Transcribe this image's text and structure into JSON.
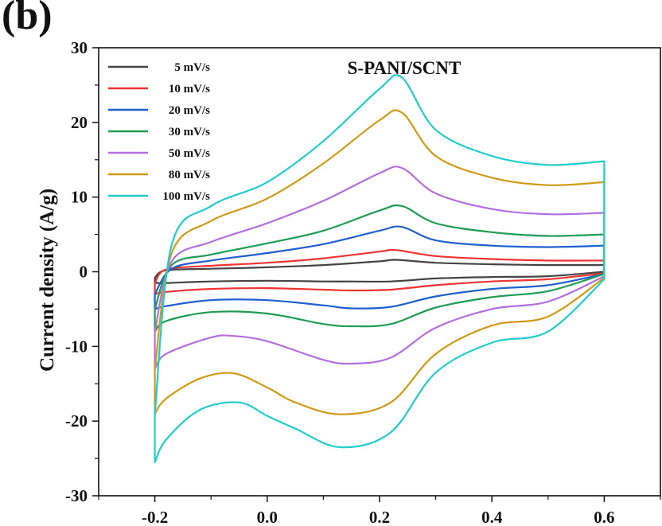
{
  "panel_label": "(b)",
  "chart_data": {
    "type": "line",
    "title": "S-PANI/SCNT",
    "xlabel": "",
    "ylabel": "Current density (A/g)",
    "xlim": [
      -0.3,
      0.7
    ],
    "ylim": [
      -30,
      30
    ],
    "xticks": [
      -0.2,
      0.0,
      0.2,
      0.4,
      0.6
    ],
    "xtick_labels": [
      "-0.2",
      "0.0",
      "0.2",
      "0.4",
      "0.6"
    ],
    "yticks": [
      -30,
      -20,
      -10,
      0,
      10,
      20,
      30
    ],
    "ytick_labels": [
      "-30",
      "-20",
      "-10",
      "0",
      "10",
      "20",
      "30"
    ],
    "grid": false,
    "legend_position": "top-left",
    "series": [
      {
        "name": "5 mV/s",
        "color": "#444444",
        "anodic": [
          [
            -0.2,
            -0.8
          ],
          [
            -0.18,
            0.2
          ],
          [
            -0.1,
            0.4
          ],
          [
            0.0,
            0.6
          ],
          [
            0.1,
            0.9
          ],
          [
            0.2,
            1.4
          ],
          [
            0.23,
            1.6
          ],
          [
            0.3,
            1.2
          ],
          [
            0.4,
            1.0
          ],
          [
            0.5,
            0.9
          ],
          [
            0.6,
            0.9
          ]
        ],
        "cathodic": [
          [
            0.6,
            0.0
          ],
          [
            0.5,
            -0.6
          ],
          [
            0.4,
            -0.7
          ],
          [
            0.3,
            -0.9
          ],
          [
            0.22,
            -1.3
          ],
          [
            0.15,
            -1.3
          ],
          [
            0.1,
            -1.3
          ],
          [
            0.0,
            -1.2
          ],
          [
            -0.1,
            -1.3
          ],
          [
            -0.18,
            -1.5
          ],
          [
            -0.2,
            -1.5
          ]
        ]
      },
      {
        "name": "10 mV/s",
        "color": "#ee3333",
        "anodic": [
          [
            -0.2,
            -1.5
          ],
          [
            -0.18,
            0.3
          ],
          [
            -0.1,
            0.8
          ],
          [
            0.0,
            1.2
          ],
          [
            0.1,
            1.8
          ],
          [
            0.2,
            2.7
          ],
          [
            0.23,
            2.9
          ],
          [
            0.3,
            2.1
          ],
          [
            0.4,
            1.7
          ],
          [
            0.5,
            1.5
          ],
          [
            0.6,
            1.5
          ]
        ],
        "cathodic": [
          [
            0.6,
            -0.2
          ],
          [
            0.5,
            -1.0
          ],
          [
            0.4,
            -1.3
          ],
          [
            0.3,
            -1.8
          ],
          [
            0.22,
            -2.4
          ],
          [
            0.15,
            -2.5
          ],
          [
            0.1,
            -2.4
          ],
          [
            0.0,
            -2.2
          ],
          [
            -0.1,
            -2.3
          ],
          [
            -0.18,
            -2.7
          ],
          [
            -0.2,
            -3.0
          ]
        ]
      },
      {
        "name": "20 mV/s",
        "color": "#1f5fcf",
        "anodic": [
          [
            -0.2,
            -3.0
          ],
          [
            -0.17,
            0.4
          ],
          [
            -0.1,
            1.5
          ],
          [
            0.0,
            2.5
          ],
          [
            0.1,
            3.7
          ],
          [
            0.2,
            5.5
          ],
          [
            0.24,
            6.0
          ],
          [
            0.3,
            4.2
          ],
          [
            0.4,
            3.5
          ],
          [
            0.5,
            3.3
          ],
          [
            0.6,
            3.5
          ]
        ],
        "cathodic": [
          [
            0.6,
            -0.3
          ],
          [
            0.5,
            -1.8
          ],
          [
            0.4,
            -2.3
          ],
          [
            0.3,
            -3.3
          ],
          [
            0.22,
            -4.7
          ],
          [
            0.15,
            -4.9
          ],
          [
            0.1,
            -4.5
          ],
          [
            0.0,
            -3.8
          ],
          [
            -0.1,
            -3.8
          ],
          [
            -0.18,
            -4.6
          ],
          [
            -0.2,
            -5.0
          ]
        ]
      },
      {
        "name": "30 mV/s",
        "color": "#1e9c55",
        "anodic": [
          [
            -0.2,
            -5.0
          ],
          [
            -0.17,
            0.9
          ],
          [
            -0.1,
            2.3
          ],
          [
            0.0,
            3.8
          ],
          [
            0.1,
            5.5
          ],
          [
            0.2,
            8.2
          ],
          [
            0.24,
            8.8
          ],
          [
            0.3,
            6.5
          ],
          [
            0.4,
            5.3
          ],
          [
            0.5,
            4.8
          ],
          [
            0.6,
            5.0
          ]
        ],
        "cathodic": [
          [
            0.6,
            -0.3
          ],
          [
            0.5,
            -2.6
          ],
          [
            0.4,
            -3.4
          ],
          [
            0.3,
            -4.8
          ],
          [
            0.22,
            -7.0
          ],
          [
            0.15,
            -7.3
          ],
          [
            0.1,
            -7.0
          ],
          [
            0.0,
            -5.6
          ],
          [
            -0.1,
            -5.4
          ],
          [
            -0.18,
            -6.6
          ],
          [
            -0.2,
            -8.0
          ]
        ]
      },
      {
        "name": "50 mV/s",
        "color": "#b36ee0",
        "anodic": [
          [
            -0.2,
            -8.0
          ],
          [
            -0.17,
            1.4
          ],
          [
            -0.1,
            4.0
          ],
          [
            0.0,
            6.5
          ],
          [
            0.1,
            9.5
          ],
          [
            0.2,
            13.2
          ],
          [
            0.24,
            13.9
          ],
          [
            0.3,
            10.5
          ],
          [
            0.4,
            8.4
          ],
          [
            0.5,
            7.7
          ],
          [
            0.6,
            7.9
          ]
        ],
        "cathodic": [
          [
            0.6,
            -0.6
          ],
          [
            0.5,
            -4.0
          ],
          [
            0.4,
            -5.0
          ],
          [
            0.3,
            -7.5
          ],
          [
            0.22,
            -11.5
          ],
          [
            0.15,
            -12.3
          ],
          [
            0.1,
            -11.8
          ],
          [
            0.0,
            -9.3
          ],
          [
            -0.06,
            -8.6
          ],
          [
            -0.1,
            -8.8
          ],
          [
            -0.18,
            -11.0
          ],
          [
            -0.2,
            -13.0
          ]
        ]
      },
      {
        "name": "80 mV/s",
        "color": "#cf9a17",
        "anodic": [
          [
            -0.2,
            -13.0
          ],
          [
            -0.17,
            2.5
          ],
          [
            -0.1,
            6.8
          ],
          [
            0.0,
            9.8
          ],
          [
            0.1,
            14.5
          ],
          [
            0.2,
            20.3
          ],
          [
            0.24,
            21.3
          ],
          [
            0.3,
            15.5
          ],
          [
            0.4,
            12.6
          ],
          [
            0.5,
            11.6
          ],
          [
            0.6,
            12.0
          ]
        ],
        "cathodic": [
          [
            0.6,
            -0.8
          ],
          [
            0.5,
            -6.0
          ],
          [
            0.4,
            -7.2
          ],
          [
            0.3,
            -11.0
          ],
          [
            0.22,
            -17.5
          ],
          [
            0.13,
            -19.1
          ],
          [
            0.05,
            -17.5
          ],
          [
            0.0,
            -15.5
          ],
          [
            -0.06,
            -13.6
          ],
          [
            -0.12,
            -14.3
          ],
          [
            -0.18,
            -17.0
          ],
          [
            -0.2,
            -19.0
          ]
        ]
      },
      {
        "name": "100 mV/s",
        "color": "#22cccc",
        "anodic": [
          [
            -0.2,
            -19.0
          ],
          [
            -0.17,
            3.6
          ],
          [
            -0.1,
            8.8
          ],
          [
            0.0,
            12.0
          ],
          [
            0.1,
            17.5
          ],
          [
            0.2,
            24.5
          ],
          [
            0.24,
            26.0
          ],
          [
            0.3,
            19.0
          ],
          [
            0.4,
            15.5
          ],
          [
            0.5,
            14.3
          ],
          [
            0.6,
            14.8
          ]
        ],
        "cathodic": [
          [
            0.6,
            -1.0
          ],
          [
            0.5,
            -8.0
          ],
          [
            0.4,
            -9.5
          ],
          [
            0.3,
            -13.5
          ],
          [
            0.22,
            -21.5
          ],
          [
            0.13,
            -23.5
          ],
          [
            0.05,
            -21.0
          ],
          [
            0.0,
            -19.3
          ],
          [
            -0.05,
            -17.5
          ],
          [
            -0.12,
            -18.5
          ],
          [
            -0.18,
            -22.5
          ],
          [
            -0.2,
            -25.5
          ]
        ]
      }
    ]
  }
}
